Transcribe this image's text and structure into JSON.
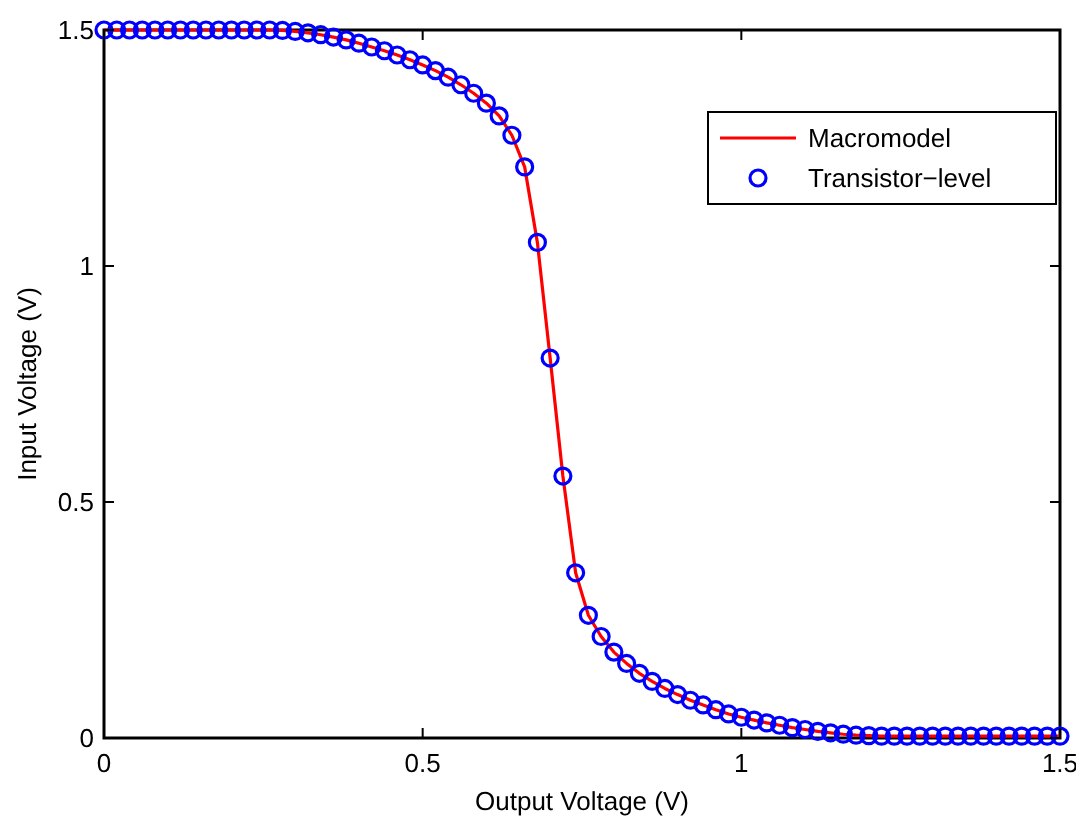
{
  "chart_data": {
    "type": "line",
    "xlabel": "Output Voltage (V)",
    "ylabel": "Input Voltage (V)",
    "x": [
      0,
      0.02,
      0.04,
      0.06,
      0.08,
      0.1,
      0.12,
      0.14,
      0.16,
      0.18,
      0.2,
      0.22,
      0.24,
      0.26,
      0.28,
      0.3,
      0.32,
      0.34,
      0.36,
      0.38,
      0.4,
      0.42,
      0.44,
      0.46,
      0.48,
      0.5,
      0.52,
      0.54,
      0.56,
      0.58,
      0.6,
      0.62,
      0.64,
      0.66,
      0.68,
      0.7,
      0.72,
      0.74,
      0.76,
      0.78,
      0.8,
      0.82,
      0.84,
      0.86,
      0.88,
      0.9,
      0.92,
      0.94,
      0.96,
      0.98,
      1,
      1.02,
      1.04,
      1.06,
      1.08,
      1.1,
      1.12,
      1.14,
      1.16,
      1.18,
      1.2,
      1.22,
      1.24,
      1.26,
      1.28,
      1.3,
      1.32,
      1.34,
      1.36,
      1.38,
      1.4,
      1.42,
      1.44,
      1.46,
      1.48,
      1.5
    ],
    "series": [
      {
        "name": "Macromodel",
        "type": "line",
        "color": "#ff0000",
        "marker": "none",
        "values": [
          1.5,
          1.5,
          1.5,
          1.5,
          1.5,
          1.5,
          1.5,
          1.5,
          1.5,
          1.5,
          1.5,
          1.5,
          1.5,
          1.5,
          1.499,
          1.497,
          1.494,
          1.49,
          1.485,
          1.479,
          1.472,
          1.464,
          1.456,
          1.447,
          1.437,
          1.426,
          1.414,
          1.4,
          1.384,
          1.366,
          1.345,
          1.318,
          1.277,
          1.21,
          1.05,
          0.805,
          0.555,
          0.35,
          0.26,
          0.215,
          0.182,
          0.158,
          0.137,
          0.12,
          0.105,
          0.092,
          0.08,
          0.07,
          0.06,
          0.051,
          0.044,
          0.038,
          0.032,
          0.027,
          0.022,
          0.018,
          0.014,
          0.011,
          0.008,
          0.006,
          0.005,
          0.004,
          0.004,
          0.004,
          0.004,
          0.004,
          0.004,
          0.004,
          0.004,
          0.004,
          0.004,
          0.004,
          0.004,
          0.004,
          0.004,
          0.004
        ]
      },
      {
        "name": "Transistor−level",
        "type": "scatter",
        "color": "#0000ff",
        "marker": "circle",
        "values": [
          1.5,
          1.5,
          1.5,
          1.5,
          1.5,
          1.5,
          1.5,
          1.5,
          1.5,
          1.5,
          1.5,
          1.5,
          1.5,
          1.5,
          1.499,
          1.497,
          1.494,
          1.49,
          1.485,
          1.479,
          1.472,
          1.464,
          1.456,
          1.447,
          1.437,
          1.426,
          1.414,
          1.4,
          1.384,
          1.366,
          1.345,
          1.318,
          1.277,
          1.21,
          1.05,
          0.805,
          0.555,
          0.35,
          0.26,
          0.215,
          0.182,
          0.158,
          0.137,
          0.12,
          0.105,
          0.092,
          0.08,
          0.07,
          0.06,
          0.051,
          0.044,
          0.038,
          0.032,
          0.027,
          0.022,
          0.018,
          0.014,
          0.011,
          0.008,
          0.006,
          0.005,
          0.004,
          0.004,
          0.004,
          0.004,
          0.004,
          0.004,
          0.004,
          0.004,
          0.004,
          0.004,
          0.004,
          0.004,
          0.004,
          0.004,
          0.004
        ]
      }
    ],
    "xlim": [
      0,
      1.5
    ],
    "ylim": [
      0,
      1.5
    ],
    "xticks": [
      0,
      0.5,
      1,
      1.5
    ],
    "yticks": [
      0,
      0.5,
      1,
      1.5
    ],
    "grid": false,
    "legend": "top right"
  }
}
